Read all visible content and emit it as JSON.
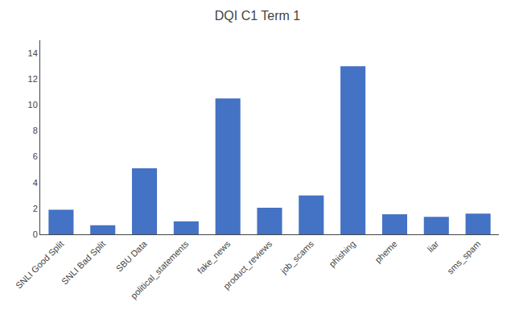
{
  "chart_data": {
    "type": "bar",
    "title": "DQI C1 Term 1",
    "categories": [
      "SNLI Good Split",
      "SNLI Bad Split",
      "SBU Data",
      "political_statements",
      "fake_news",
      "product_reviews",
      "job_scams",
      "phishing",
      "pheme",
      "liar",
      "sms_spam"
    ],
    "values": [
      1.9,
      0.7,
      5.1,
      1.0,
      10.5,
      2.05,
      3.0,
      13.0,
      1.55,
      1.35,
      1.6
    ],
    "color": "#4472C4",
    "ylim": [
      0,
      15
    ],
    "yticks": [
      0,
      2,
      4,
      6,
      8,
      10,
      12,
      14
    ],
    "grid": false
  }
}
